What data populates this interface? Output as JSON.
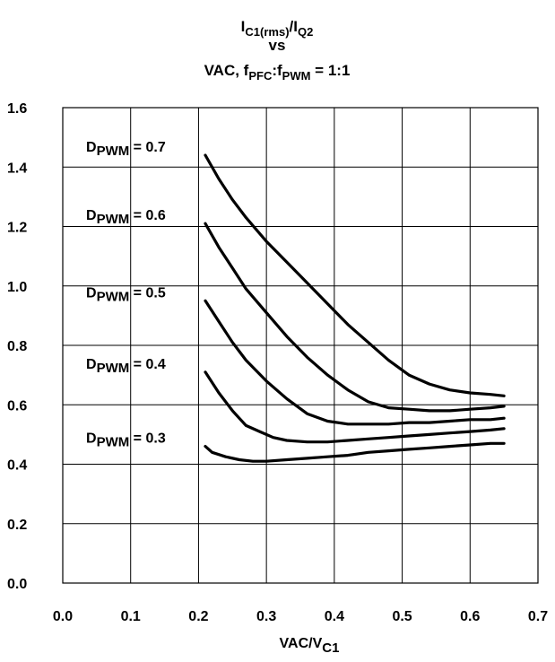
{
  "chart_data": {
    "type": "line",
    "title": {
      "line1": {
        "base": "I",
        "sub1": "C1(rms)",
        "sep": "/I",
        "sub2": "Q2"
      },
      "line2": "vs",
      "line3": {
        "p1": "VAC, f",
        "sub1": "PFC",
        "p2": ":f",
        "sub2": "PWM",
        "p3": " = 1:1"
      }
    },
    "xlabel": {
      "base": "VAC/V",
      "sub": "C1"
    },
    "ylabel": "",
    "xlim": [
      0.0,
      0.7
    ],
    "ylim": [
      0.0,
      1.6
    ],
    "grid": true,
    "x_ticks": [
      "0.0",
      "0.1",
      "0.2",
      "0.3",
      "0.4",
      "0.5",
      "0.6",
      "0.7"
    ],
    "y_ticks": [
      "0.0",
      "0.2",
      "0.4",
      "0.6",
      "0.8",
      "1.0",
      "1.2",
      "1.4",
      "1.6"
    ],
    "series": [
      {
        "name": "DPWM = 0.7",
        "label": {
          "base": "D",
          "sub": "PWM",
          "rest": " = 0.7"
        },
        "x": [
          0.21,
          0.23,
          0.25,
          0.27,
          0.3,
          0.33,
          0.36,
          0.39,
          0.42,
          0.45,
          0.48,
          0.51,
          0.54,
          0.57,
          0.6,
          0.63,
          0.65
        ],
        "y": [
          1.44,
          1.36,
          1.29,
          1.23,
          1.15,
          1.08,
          1.01,
          0.94,
          0.87,
          0.81,
          0.75,
          0.7,
          0.67,
          0.65,
          0.64,
          0.635,
          0.63
        ]
      },
      {
        "name": "DPWM = 0.6",
        "label": {
          "base": "D",
          "sub": "PWM",
          "rest": " = 0.6"
        },
        "x": [
          0.21,
          0.23,
          0.25,
          0.27,
          0.3,
          0.33,
          0.36,
          0.39,
          0.42,
          0.45,
          0.48,
          0.51,
          0.54,
          0.57,
          0.6,
          0.63,
          0.65
        ],
        "y": [
          1.21,
          1.13,
          1.06,
          0.99,
          0.91,
          0.83,
          0.76,
          0.7,
          0.65,
          0.61,
          0.59,
          0.585,
          0.58,
          0.58,
          0.585,
          0.59,
          0.595
        ]
      },
      {
        "name": "DPWM = 0.5",
        "label": {
          "base": "D",
          "sub": "PWM",
          "rest": " = 0.5"
        },
        "x": [
          0.21,
          0.23,
          0.25,
          0.27,
          0.3,
          0.33,
          0.36,
          0.39,
          0.42,
          0.45,
          0.48,
          0.51,
          0.54,
          0.57,
          0.6,
          0.63,
          0.65
        ],
        "y": [
          0.95,
          0.88,
          0.81,
          0.75,
          0.68,
          0.62,
          0.57,
          0.545,
          0.535,
          0.535,
          0.535,
          0.54,
          0.54,
          0.545,
          0.55,
          0.55,
          0.555
        ]
      },
      {
        "name": "DPWM = 0.4",
        "label": {
          "base": "D",
          "sub": "PWM",
          "rest": " = 0.4"
        },
        "x": [
          0.21,
          0.23,
          0.25,
          0.27,
          0.29,
          0.31,
          0.33,
          0.36,
          0.39,
          0.42,
          0.45,
          0.48,
          0.51,
          0.54,
          0.57,
          0.6,
          0.63,
          0.65
        ],
        "y": [
          0.71,
          0.64,
          0.58,
          0.53,
          0.51,
          0.49,
          0.48,
          0.475,
          0.475,
          0.48,
          0.485,
          0.49,
          0.495,
          0.5,
          0.505,
          0.51,
          0.515,
          0.52
        ]
      },
      {
        "name": "DPWM = 0.3",
        "label": {
          "base": "D",
          "sub": "PWM",
          "rest": " = 0.3"
        },
        "x": [
          0.21,
          0.22,
          0.24,
          0.26,
          0.28,
          0.3,
          0.33,
          0.36,
          0.39,
          0.42,
          0.45,
          0.48,
          0.51,
          0.54,
          0.57,
          0.6,
          0.63,
          0.65
        ],
        "y": [
          0.46,
          0.44,
          0.425,
          0.415,
          0.41,
          0.41,
          0.415,
          0.42,
          0.425,
          0.43,
          0.44,
          0.445,
          0.45,
          0.455,
          0.46,
          0.465,
          0.47,
          0.47
        ]
      }
    ]
  }
}
